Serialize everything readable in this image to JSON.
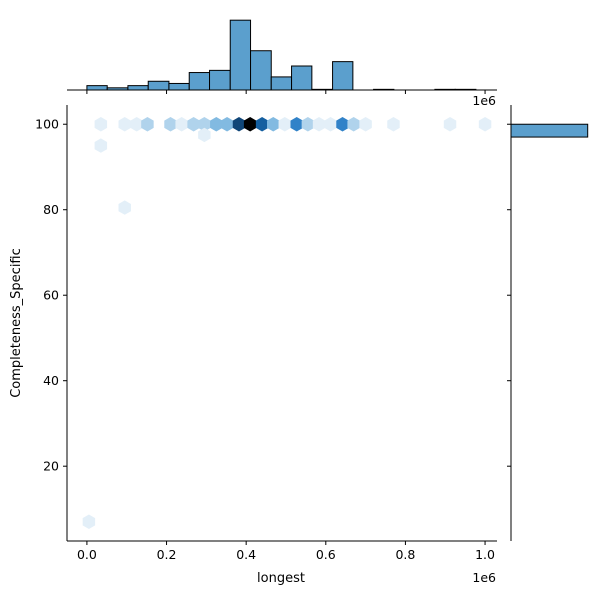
{
  "chart_data": {
    "type": "hexbin-jointplot",
    "x_axis": {
      "label": "longest",
      "range": [
        -50000,
        1030000
      ],
      "ticks": [
        0,
        200000,
        400000,
        600000,
        800000,
        1000000
      ],
      "tick_labels": [
        "0.0",
        "0.2",
        "0.4",
        "0.6",
        "0.8",
        "1.0"
      ],
      "offset_text": "1e6"
    },
    "y_axis": {
      "label": "Completeness_Specific",
      "range": [
        2.5,
        104.5
      ],
      "ticks": [
        20,
        40,
        60,
        80,
        100
      ],
      "tick_labels": [
        "20",
        "40",
        "60",
        "80",
        "100"
      ]
    },
    "top_margin_offset_text": "1e6",
    "hexbins": [
      {
        "x": 5000,
        "y": 7,
        "count": 1
      },
      {
        "x": 35000,
        "y": 100,
        "count": 1
      },
      {
        "x": 35000,
        "y": 95,
        "count": 1
      },
      {
        "x": 95000,
        "y": 80.5,
        "count": 1
      },
      {
        "x": 95000,
        "y": 100,
        "count": 1
      },
      {
        "x": 125000,
        "y": 100,
        "count": 1
      },
      {
        "x": 152000,
        "y": 100,
        "count": 3
      },
      {
        "x": 210000,
        "y": 100,
        "count": 3
      },
      {
        "x": 238000,
        "y": 100,
        "count": 1
      },
      {
        "x": 268000,
        "y": 100,
        "count": 3
      },
      {
        "x": 295000,
        "y": 100,
        "count": 3
      },
      {
        "x": 295000,
        "y": 97.5,
        "count": 1
      },
      {
        "x": 325000,
        "y": 100,
        "count": 4
      },
      {
        "x": 352000,
        "y": 100,
        "count": 4
      },
      {
        "x": 382000,
        "y": 100,
        "count": 9
      },
      {
        "x": 410000,
        "y": 100,
        "count": 12
      },
      {
        "x": 440000,
        "y": 100,
        "count": 8
      },
      {
        "x": 468000,
        "y": 100,
        "count": 4
      },
      {
        "x": 497000,
        "y": 100,
        "count": 1
      },
      {
        "x": 527000,
        "y": 100,
        "count": 7
      },
      {
        "x": 555000,
        "y": 100,
        "count": 3
      },
      {
        "x": 583000,
        "y": 100,
        "count": 1
      },
      {
        "x": 612000,
        "y": 100,
        "count": 1
      },
      {
        "x": 642000,
        "y": 100,
        "count": 7
      },
      {
        "x": 670000,
        "y": 100,
        "count": 3
      },
      {
        "x": 700000,
        "y": 100,
        "count": 1
      },
      {
        "x": 770000,
        "y": 100,
        "count": 1
      },
      {
        "x": 912000,
        "y": 100,
        "count": 1
      },
      {
        "x": 1000000,
        "y": 100,
        "count": 1
      }
    ],
    "x_histogram": {
      "bins": [
        {
          "x0": 0,
          "x1": 51000,
          "count": 2
        },
        {
          "x0": 51000,
          "x1": 103000,
          "count": 1
        },
        {
          "x0": 103000,
          "x1": 154000,
          "count": 2
        },
        {
          "x0": 154000,
          "x1": 206000,
          "count": 4
        },
        {
          "x0": 206000,
          "x1": 257000,
          "count": 3
        },
        {
          "x0": 257000,
          "x1": 308000,
          "count": 8
        },
        {
          "x0": 308000,
          "x1": 360000,
          "count": 9
        },
        {
          "x0": 360000,
          "x1": 411000,
          "count": 32
        },
        {
          "x0": 411000,
          "x1": 463000,
          "count": 18
        },
        {
          "x0": 463000,
          "x1": 514000,
          "count": 6
        },
        {
          "x0": 514000,
          "x1": 565000,
          "count": 11
        },
        {
          "x0": 565000,
          "x1": 617000,
          "count": 0.3
        },
        {
          "x0": 617000,
          "x1": 668000,
          "count": 13
        },
        {
          "x0": 668000,
          "x1": 720000,
          "count": 0
        },
        {
          "x0": 720000,
          "x1": 771000,
          "count": 0.3
        },
        {
          "x0": 771000,
          "x1": 822000,
          "count": 0
        },
        {
          "x0": 822000,
          "x1": 874000,
          "count": 0
        },
        {
          "x0": 874000,
          "x1": 925000,
          "count": 0.3
        },
        {
          "x0": 925000,
          "x1": 977000,
          "count": 0.3
        }
      ],
      "ymax": 33
    },
    "y_histogram": {
      "bins": [
        {
          "y0": 97,
          "y1": 100,
          "count": 100
        }
      ],
      "bins_background": [
        {
          "y0": 5,
          "y1": 97,
          "count": 0.3
        }
      ],
      "xmax": 103
    },
    "colors": {
      "fill": "#5b9fcd",
      "edge": "#000000",
      "hex_light": "#f0f6fb",
      "hex_dark": "#000000"
    }
  }
}
